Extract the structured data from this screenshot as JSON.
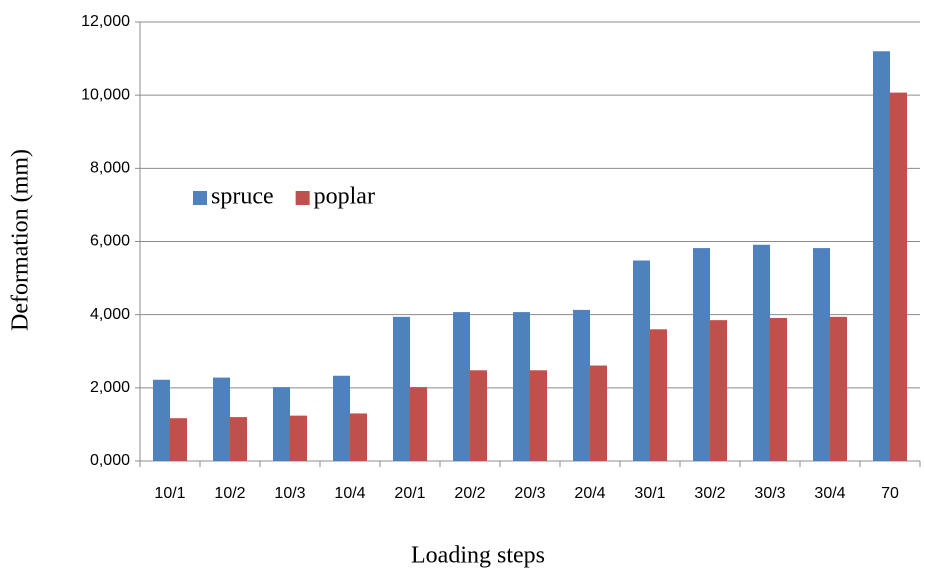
{
  "chart_data": {
    "type": "bar",
    "x_label": "Loading steps",
    "y_label": "Deformation (mm)",
    "categories": [
      "10/1",
      "10/2",
      "10/3",
      "10/4",
      "20/1",
      "20/2",
      "20/3",
      "20/4",
      "30/1",
      "30/2",
      "30/3",
      "30/4",
      "70"
    ],
    "series": [
      {
        "name": "spruce",
        "color": "#4f81bd",
        "values": [
          2220,
          2280,
          2020,
          2330,
          3940,
          4070,
          4070,
          4130,
          5480,
          5820,
          5910,
          5820,
          11200
        ]
      },
      {
        "name": "poplar",
        "color": "#c0504d",
        "values": [
          1170,
          1200,
          1240,
          1300,
          2020,
          2480,
          2480,
          2610,
          3600,
          3850,
          3910,
          3940,
          10070
        ]
      }
    ],
    "ylim": [
      0,
      12000
    ],
    "yticks": [
      {
        "value": 0,
        "label": "0,000"
      },
      {
        "value": 2000,
        "label": "2,000"
      },
      {
        "value": 4000,
        "label": "4,000"
      },
      {
        "value": 6000,
        "label": "6,000"
      },
      {
        "value": 8000,
        "label": "8,000"
      },
      {
        "value": 10000,
        "label": "10,000"
      },
      {
        "value": 12000,
        "label": "12,000"
      }
    ],
    "grid": true,
    "legend": "upper left"
  }
}
